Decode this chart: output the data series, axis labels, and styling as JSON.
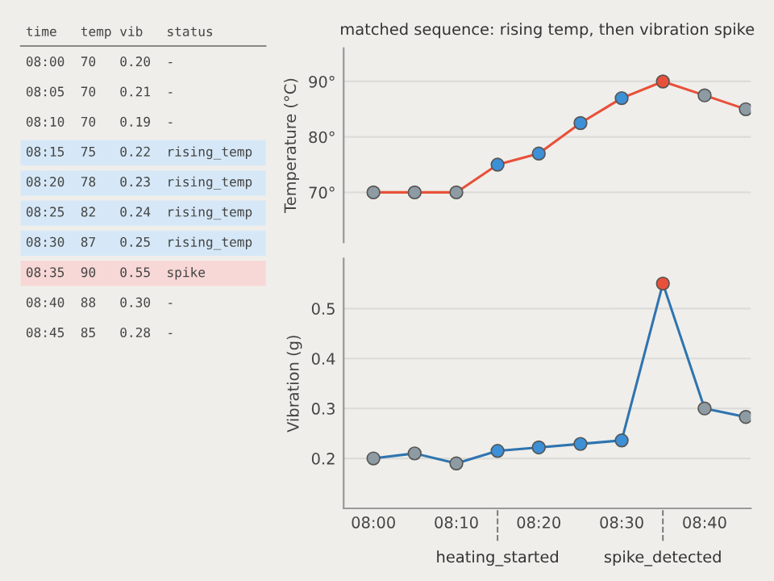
{
  "chart_data": [
    {
      "type": "other",
      "annotations": [
        "time temp vib status",
        "08:00 70 0.20 -",
        "08:05 70 0.21 -",
        "08:10 70 0.19 -",
        "08:15 75 0.22 rising_temp",
        "08:20 78 0.23 rising_temp",
        "08:25 82 0.24 rising_temp",
        "08:30 87 0.25 rising_temp",
        "08:35 90 0.55 spike",
        "08:40 88 0.30 -",
        "08:45 85 0.28 -"
      ],
      "colors": [
        null,
        null,
        null,
        null,
        "#d6e8f7",
        "#d6e8f7",
        "#d6e8f7",
        "#d6e8f7",
        "#f7d8d6",
        null,
        null
      ]
    },
    {
      "type": "line",
      "title": "matched sequence: rising temp, then vibration spike",
      "ylabel": "Temperature (°C)",
      "x": [
        8.0,
        8.083,
        8.167,
        8.25,
        8.333,
        8.417,
        8.5,
        8.583,
        8.667,
        8.75
      ],
      "series": [
        {
          "color": "#e8503a",
          "values": [
            70,
            70,
            70,
            75,
            77,
            82.5,
            87,
            90,
            87.5,
            85
          ],
          "colors": [
            "#8e9ba3",
            "#8e9ba3",
            "#8e9ba3",
            "#3d8fd6",
            "#3d8fd6",
            "#3d8fd6",
            "#3d8fd6",
            "#e8503a",
            "#8e9ba3",
            "#8e9ba3"
          ]
        }
      ],
      "xlim": [
        7.94,
        8.76
      ],
      "ylim": [
        61,
        96
      ],
      "yticks": [
        {
          "value": 70,
          "label": "70°"
        },
        {
          "value": 80,
          "label": "80°"
        },
        {
          "value": 90,
          "label": "90°"
        }
      ],
      "tick_labels": "y",
      "grid": "y",
      "marker": "circle",
      "line_style": "solid"
    },
    {
      "type": "line",
      "ylabel": "Vibration (g)",
      "x": [
        8.0,
        8.083,
        8.167,
        8.25,
        8.333,
        8.417,
        8.5,
        8.583,
        8.667,
        8.75
      ],
      "series": [
        {
          "color": "#2f74b0",
          "values": [
            0.2,
            0.21,
            0.19,
            0.215,
            0.222,
            0.229,
            0.236,
            0.55,
            0.3,
            0.283
          ],
          "colors": [
            "#8e9ba3",
            "#8e9ba3",
            "#8e9ba3",
            "#3d8fd6",
            "#3d8fd6",
            "#3d8fd6",
            "#3d8fd6",
            "#e8503a",
            "#8e9ba3",
            "#8e9ba3"
          ]
        }
      ],
      "xlim": [
        7.94,
        8.76
      ],
      "ylim": [
        0.1,
        0.6
      ],
      "xticks": [
        {
          "value": 8.0,
          "label": "08:00"
        },
        {
          "value": 8.167,
          "label": "08:10"
        },
        {
          "value": 8.333,
          "label": "08:20"
        },
        {
          "value": 8.5,
          "label": "08:30"
        },
        {
          "value": 8.667,
          "label": "08:40"
        }
      ],
      "yticks": [
        0.2,
        0.3,
        0.4,
        0.5
      ],
      "grid": "y",
      "marker": "circle",
      "line_style": "solid",
      "ref_lines": [
        {
          "axis": "x",
          "value": 8.25,
          "label": "heating_started",
          "color": "#777777",
          "line_style": "dashed"
        },
        {
          "axis": "x",
          "value": 8.583,
          "label": "spike_detected",
          "color": "#777777",
          "line_style": "dashed"
        }
      ]
    }
  ]
}
